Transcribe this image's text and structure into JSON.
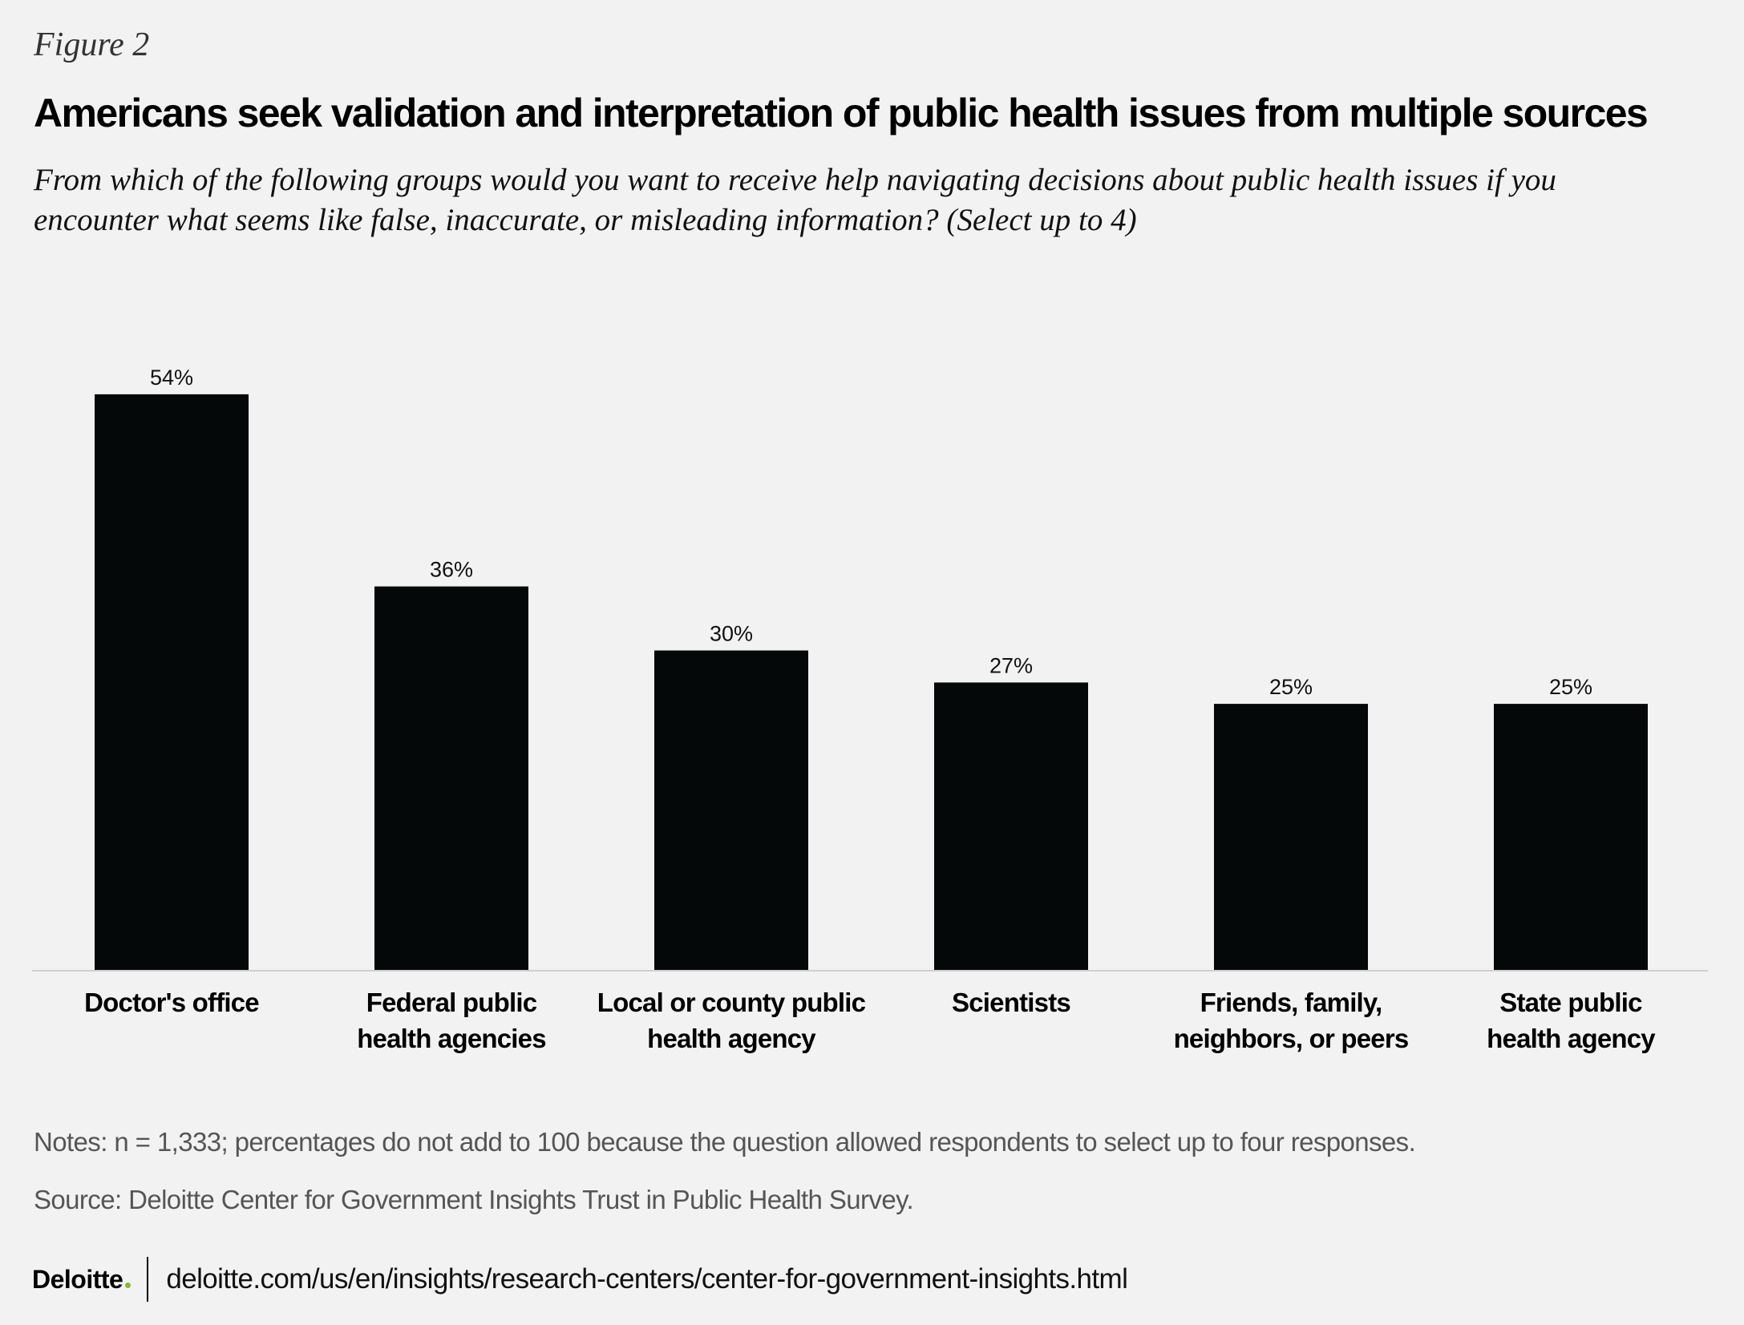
{
  "figure_label": "Figure 2",
  "chart_data": {
    "type": "bar",
    "title": "Americans seek validation and interpretation of public health issues from multiple sources",
    "subtitle": "From which of the following groups would you want to receive help navigating decisions about public health issues if you encounter what seems like false, inaccurate, or misleading information? (Select up to 4)",
    "categories": [
      [
        "Doctor's office"
      ],
      [
        "Federal public",
        "health agencies"
      ],
      [
        "Local or county public",
        "health agency"
      ],
      [
        "Scientists"
      ],
      [
        "Friends, family,",
        "neighbors, or peers"
      ],
      [
        "State public",
        "health agency"
      ]
    ],
    "values": [
      54,
      36,
      30,
      27,
      25,
      25
    ],
    "value_labels": [
      "54%",
      "36%",
      "30%",
      "27%",
      "25%",
      "25%"
    ],
    "ylim": [
      0,
      60
    ],
    "grid": false,
    "bar_color": "#050808",
    "xlabel": "",
    "ylabel": ""
  },
  "notes": "Notes: n = 1,333; percentages do not add to 100 because the question allowed respondents to select up to four responses.",
  "source": "Source: Deloitte Center for Government Insights Trust in Public Health Survey.",
  "footer": {
    "logo": "Deloitte",
    "logo_dot_color": "#86bc25",
    "url": "deloitte.com/us/en/insights/research-centers/center-for-government-insights.html"
  }
}
